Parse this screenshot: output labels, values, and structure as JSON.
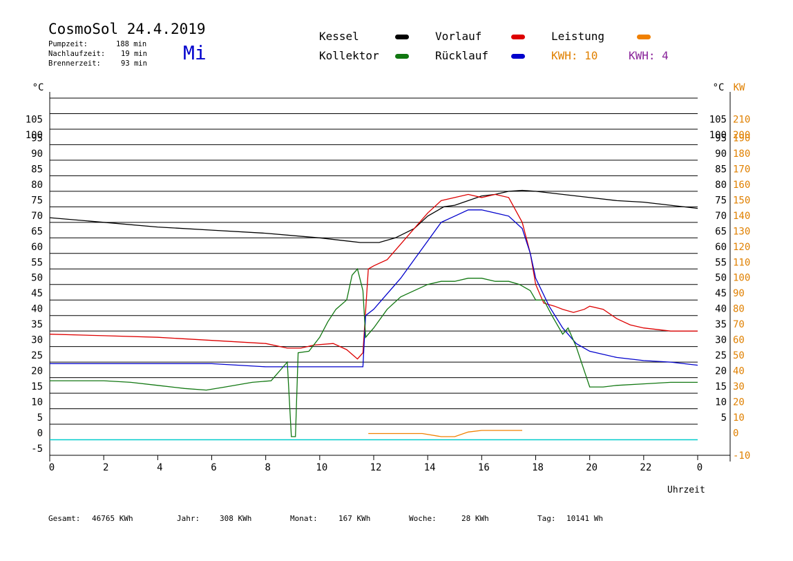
{
  "header": {
    "title": "CosmoSol 24.4.2019",
    "weekday": "Mi",
    "info": [
      {
        "label": "Pumpzeit:",
        "value": "188 min"
      },
      {
        "label": "Nachlaufzeit:",
        "value": "19 min"
      },
      {
        "label": "Brennerzeit:",
        "value": "93 min"
      }
    ]
  },
  "legend": {
    "kessel": {
      "label": "Kessel",
      "color": "#000000"
    },
    "vorlauf": {
      "label": "Vorlauf",
      "color": "#dd0000"
    },
    "leistung": {
      "label": "Leistung",
      "color": "#f08000"
    },
    "kollektor": {
      "label": "Kollektor",
      "color": "#117711"
    },
    "ruecklauf": {
      "label": "Rücklauf",
      "color": "#0000cc"
    },
    "kwh1": {
      "label": "KWH: 10",
      "color": "#e08000"
    },
    "kwh2": {
      "label": "KWH: 4",
      "color": "#882299"
    }
  },
  "footer": {
    "gesamt_label": "Gesamt:",
    "gesamt_value": "46765 KWh",
    "jahr_label": "Jahr:",
    "jahr_value": "308 KWh",
    "monat_label": "Monat:",
    "monat_value": "167 KWh",
    "woche_label": "Woche:",
    "woche_value": "28 KWh",
    "tag_label": "Tag:",
    "tag_value": "10141 Wh"
  },
  "chart_data": {
    "type": "line",
    "xlabel": "Uhrzeit",
    "ylabel_left": "°C",
    "ylabel_right_temp": "°C",
    "ylabel_right_power": "KW",
    "xlim": [
      0,
      24
    ],
    "ylim": [
      -5,
      110
    ],
    "x_ticks": [
      "0",
      "2",
      "4",
      "6",
      "8",
      "10",
      "12",
      "14",
      "16",
      "18",
      "20",
      "22",
      "0"
    ],
    "y_ticks": [
      "-5",
      "0",
      "5",
      "10",
      "15",
      "20",
      "25",
      "30",
      "35",
      "40",
      "45",
      "50",
      "55",
      "60",
      "65",
      "70",
      "75",
      "80",
      "85",
      "90",
      "95",
      "100",
      "105"
    ],
    "y_ticks_right": [
      "5",
      "10",
      "15",
      "20",
      "25",
      "30",
      "35",
      "40",
      "45",
      "50",
      "55",
      "60",
      "65",
      "70",
      "75",
      "80",
      "85",
      "90",
      "95",
      "100",
      "105"
    ],
    "kw_ticks": [
      "-10",
      "0",
      "10",
      "20",
      "30",
      "40",
      "50",
      "60",
      "70",
      "80",
      "90",
      "100",
      "110",
      "120",
      "130",
      "140",
      "150",
      "160",
      "170",
      "180",
      "190",
      "200",
      "210"
    ],
    "grid": true,
    "series": [
      {
        "name": "Kessel",
        "color": "#000000",
        "points": [
          [
            0,
            71.5
          ],
          [
            2,
            70
          ],
          [
            4,
            68.5
          ],
          [
            6,
            67.5
          ],
          [
            8,
            66.5
          ],
          [
            10,
            65
          ],
          [
            11.5,
            63.5
          ],
          [
            12.2,
            63.5
          ],
          [
            12.8,
            65
          ],
          [
            13.5,
            68
          ],
          [
            14,
            72
          ],
          [
            14.6,
            75
          ],
          [
            15,
            75.5
          ],
          [
            15.5,
            77
          ],
          [
            16,
            78.5
          ],
          [
            16.5,
            79
          ],
          [
            17,
            80
          ],
          [
            17.5,
            80.3
          ],
          [
            18,
            80
          ],
          [
            19,
            79
          ],
          [
            20,
            78
          ],
          [
            21,
            77
          ],
          [
            22,
            76.5
          ],
          [
            23,
            75.5
          ],
          [
            24,
            74.5
          ]
        ]
      },
      {
        "name": "Vorlauf",
        "color": "#dd0000",
        "points": [
          [
            0,
            34
          ],
          [
            2,
            33.5
          ],
          [
            4,
            33
          ],
          [
            6,
            32
          ],
          [
            8,
            31
          ],
          [
            8.8,
            29.5
          ],
          [
            9.3,
            29.5
          ],
          [
            9.8,
            30.5
          ],
          [
            10.5,
            31
          ],
          [
            11,
            29
          ],
          [
            11.4,
            26
          ],
          [
            11.6,
            28
          ],
          [
            11.8,
            55
          ],
          [
            12,
            56
          ],
          [
            12.5,
            58
          ],
          [
            13,
            63
          ],
          [
            13.5,
            68
          ],
          [
            14,
            73
          ],
          [
            14.5,
            77
          ],
          [
            15,
            78
          ],
          [
            15.5,
            79
          ],
          [
            16,
            78
          ],
          [
            16.5,
            79
          ],
          [
            17,
            78
          ],
          [
            17.5,
            70
          ],
          [
            17.8,
            60
          ],
          [
            18,
            50
          ],
          [
            18.3,
            44
          ],
          [
            18.7,
            43
          ],
          [
            19,
            42
          ],
          [
            19.4,
            41
          ],
          [
            19.8,
            42
          ],
          [
            20,
            43
          ],
          [
            20.5,
            42
          ],
          [
            21,
            39
          ],
          [
            21.5,
            37
          ],
          [
            22,
            36
          ],
          [
            23,
            35
          ],
          [
            24,
            35
          ]
        ]
      },
      {
        "name": "Rücklauf",
        "color": "#0000cc",
        "points": [
          [
            0,
            24.5
          ],
          [
            2,
            24.5
          ],
          [
            4,
            24.5
          ],
          [
            6,
            24.5
          ],
          [
            8,
            23.5
          ],
          [
            10,
            23.5
          ],
          [
            11.6,
            23.5
          ],
          [
            11.7,
            40
          ],
          [
            12,
            42
          ],
          [
            12.5,
            47
          ],
          [
            13,
            52
          ],
          [
            13.5,
            58
          ],
          [
            14,
            64
          ],
          [
            14.5,
            70
          ],
          [
            15,
            72
          ],
          [
            15.5,
            74
          ],
          [
            16,
            74
          ],
          [
            16.5,
            73
          ],
          [
            17,
            72
          ],
          [
            17.5,
            68
          ],
          [
            17.8,
            60
          ],
          [
            18,
            52
          ],
          [
            18.5,
            43
          ],
          [
            19,
            36
          ],
          [
            19.5,
            31
          ],
          [
            20,
            28.5
          ],
          [
            21,
            26.5
          ],
          [
            22,
            25.5
          ],
          [
            23,
            25
          ],
          [
            24,
            24
          ]
        ]
      },
      {
        "name": "Kollektor",
        "color": "#117711",
        "points": [
          [
            0,
            19
          ],
          [
            1,
            19
          ],
          [
            2,
            19
          ],
          [
            3,
            18.5
          ],
          [
            4,
            17.5
          ],
          [
            5,
            16.5
          ],
          [
            5.8,
            16
          ],
          [
            6.5,
            17
          ],
          [
            7.5,
            18.5
          ],
          [
            8.2,
            19
          ],
          [
            8.8,
            25
          ],
          [
            8.95,
            1
          ],
          [
            9.1,
            1
          ],
          [
            9.2,
            28
          ],
          [
            9.6,
            28.5
          ],
          [
            10,
            33
          ],
          [
            10.3,
            38
          ],
          [
            10.6,
            42
          ],
          [
            11,
            45
          ],
          [
            11.2,
            53
          ],
          [
            11.4,
            55
          ],
          [
            11.6,
            48
          ],
          [
            11.7,
            33
          ],
          [
            12,
            36
          ],
          [
            12.5,
            42
          ],
          [
            13,
            46
          ],
          [
            13.5,
            48
          ],
          [
            14,
            50
          ],
          [
            14.5,
            51
          ],
          [
            15,
            51
          ],
          [
            15.5,
            52
          ],
          [
            16,
            52
          ],
          [
            16.5,
            51
          ],
          [
            17,
            51
          ],
          [
            17.4,
            50
          ],
          [
            17.8,
            48
          ],
          [
            18,
            45
          ],
          [
            18.3,
            45
          ],
          [
            18.6,
            40
          ],
          [
            19,
            34
          ],
          [
            19.2,
            36
          ],
          [
            19.5,
            30
          ],
          [
            20,
            17
          ],
          [
            20.5,
            17
          ],
          [
            21,
            17.5
          ],
          [
            22,
            18
          ],
          [
            23,
            18.5
          ],
          [
            24,
            18.5
          ]
        ]
      },
      {
        "name": "Leistung",
        "color": "#f08000",
        "points": [
          [
            11.8,
            2
          ],
          [
            13.8,
            2
          ],
          [
            14.5,
            1
          ],
          [
            15,
            1
          ],
          [
            15.5,
            2.5
          ],
          [
            16,
            3
          ],
          [
            17,
            3
          ],
          [
            17.5,
            3
          ]
        ]
      }
    ]
  }
}
